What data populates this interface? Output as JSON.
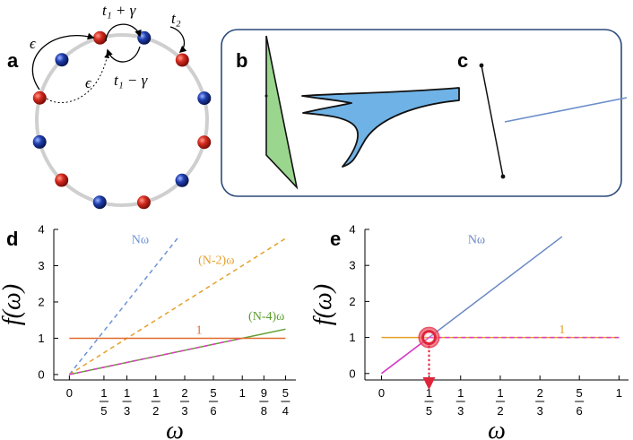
{
  "panels": {
    "a": "a",
    "b": "b",
    "c": "c",
    "d": "d",
    "e": "e"
  },
  "ring": {
    "labels": {
      "hop_forward": "t₁ + γ",
      "hop_backward": "t₁ − γ",
      "hop_second": "t₂",
      "coupling_top": "ϵ",
      "coupling_dotted": "ϵ"
    },
    "colors": {
      "red_site": "#d42a1f",
      "blue_site": "#1f3fb0",
      "ring": "#cfcfcf"
    }
  },
  "box": {
    "border_color": "#2b4a7a"
  },
  "chart_data": [
    {
      "type": "line",
      "panel": "d",
      "xlabel": "ω",
      "ylabel": "f(ω)",
      "xlim": [
        -0.09,
        1.31
      ],
      "ylim": [
        -0.15,
        4.0
      ],
      "yticks": [
        0,
        1,
        2,
        3,
        4
      ],
      "xticks": [
        {
          "value": 0,
          "num": "0",
          "den": ""
        },
        {
          "value": 0.2,
          "num": "1",
          "den": "5"
        },
        {
          "value": 0.333,
          "num": "1",
          "den": "3"
        },
        {
          "value": 0.5,
          "num": "1",
          "den": "2"
        },
        {
          "value": 0.667,
          "num": "2",
          "den": "3"
        },
        {
          "value": 0.833,
          "num": "5",
          "den": "6"
        },
        {
          "value": 1.0,
          "num": "1",
          "den": ""
        },
        {
          "value": 1.125,
          "num": "9",
          "den": "8"
        },
        {
          "value": 1.25,
          "num": "5",
          "den": "4"
        }
      ],
      "series": [
        {
          "name": "Nω",
          "x": [
            0,
            0.633
          ],
          "y": [
            0,
            3.8
          ],
          "color": "#6d93d6",
          "dash": true,
          "label_x": 0.41,
          "label_y": 3.62
        },
        {
          "name": "(N-2)ω",
          "x": [
            0,
            1.25
          ],
          "y": [
            0,
            3.75
          ],
          "color": "#e5a02a",
          "dash": true,
          "label_x": 0.85,
          "label_y": 3.05
        },
        {
          "name": "(N-4)ω",
          "x": [
            0,
            1.25
          ],
          "y": [
            0,
            1.25
          ],
          "color": "#5c9e2e",
          "dash": false,
          "label_x": 1.14,
          "label_y": 1.5
        },
        {
          "name": "(N-4)ω overlap",
          "x": [
            0,
            1.0
          ],
          "y": [
            0,
            1.0
          ],
          "color": "#e038c8",
          "dash": true,
          "label_x": null,
          "label_y": null
        },
        {
          "name": "1",
          "x": [
            0,
            1.25
          ],
          "y": [
            1,
            1
          ],
          "color": "#e06a2e",
          "dash": false,
          "label_x": 0.75,
          "label_y": 1.12
        }
      ]
    },
    {
      "type": "line",
      "panel": "e",
      "xlabel": "ω",
      "ylabel": "f(ω)",
      "xlim": [
        -0.07,
        1.04
      ],
      "ylim": [
        -0.18,
        4.0
      ],
      "yticks": [
        0,
        1,
        2,
        3,
        4
      ],
      "xticks": [
        {
          "value": 0,
          "num": "0",
          "den": ""
        },
        {
          "value": 0.2,
          "num": "1",
          "den": "5"
        },
        {
          "value": 0.333,
          "num": "1",
          "den": "3"
        },
        {
          "value": 0.5,
          "num": "1",
          "den": "2"
        },
        {
          "value": 0.667,
          "num": "2",
          "den": "3"
        },
        {
          "value": 0.833,
          "num": "5",
          "den": "6"
        },
        {
          "value": 1.0,
          "num": "1",
          "den": ""
        }
      ],
      "series": [
        {
          "name": "Nω",
          "x": [
            0,
            0.76
          ],
          "y": [
            0,
            3.8
          ],
          "color": "#6a87c4",
          "dash": false,
          "label_x": 0.4,
          "label_y": 3.62
        },
        {
          "name": "1",
          "x": [
            0,
            1.0
          ],
          "y": [
            1,
            1
          ],
          "color": "#e5a02a",
          "dash": false,
          "label_x": 0.76,
          "label_y": 1.12
        },
        {
          "name": "1 overlap",
          "x": [
            0.2,
            1.0
          ],
          "y": [
            1,
            1
          ],
          "color": "#e038c8",
          "dash": true,
          "label_x": null,
          "label_y": null
        },
        {
          "name": "Nω magenta",
          "x": [
            0,
            0.2
          ],
          "y": [
            0,
            1
          ],
          "color": "#e038c8",
          "dash": false,
          "label_x": null,
          "label_y": null
        }
      ],
      "highlight": {
        "x": 0.2,
        "y": 1,
        "color": "#e0243a"
      }
    }
  ]
}
